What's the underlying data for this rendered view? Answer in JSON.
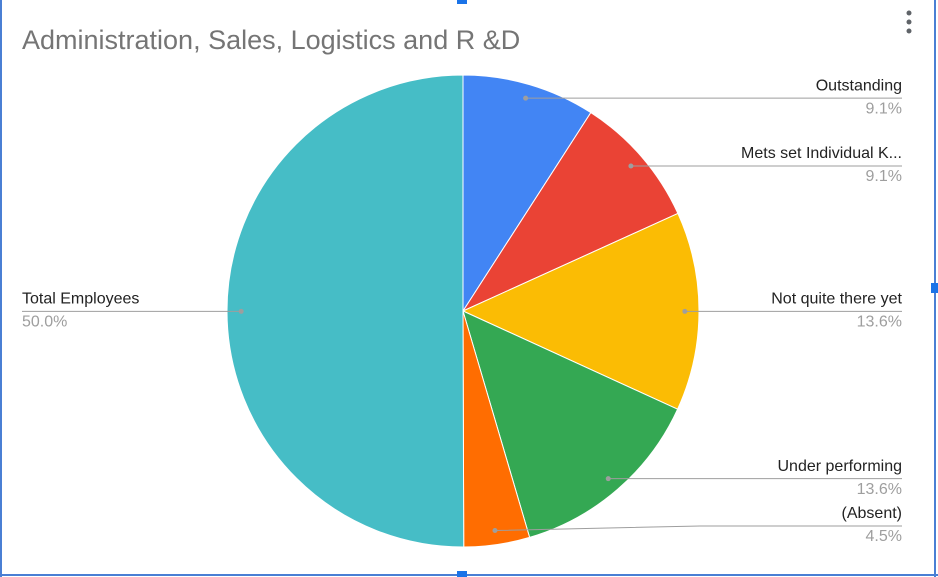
{
  "chart_data": {
    "type": "pie",
    "title": "Administration, Sales, Logistics and R &D",
    "categories": [
      "Outstanding",
      "Mets set Individual K...",
      "Not quite there yet",
      "Under performing",
      "(Absent)",
      "Total Employees"
    ],
    "values": [
      9.1,
      9.1,
      13.6,
      13.6,
      4.5,
      50.0
    ],
    "value_labels": [
      "9.1%",
      "9.1%",
      "13.6%",
      "13.6%",
      "4.5%",
      "50.0%"
    ],
    "colors": [
      "#4285f4",
      "#ea4335",
      "#fbbc04",
      "#34a853",
      "#ff6d01",
      "#46bdc6"
    ]
  }
}
